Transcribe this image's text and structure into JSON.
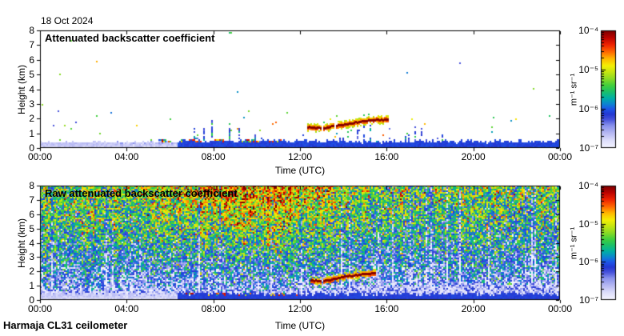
{
  "header": {
    "date": "18 Oct 2024"
  },
  "footer": {
    "instrument": "Harmaja CL31 ceilometer"
  },
  "colormap": {
    "log10_min": -7,
    "log10_max": -4,
    "stops": [
      [
        0.0,
        "#f4f4ff"
      ],
      [
        0.06,
        "#dddefb"
      ],
      [
        0.13,
        "#b2b4f2"
      ],
      [
        0.19,
        "#8790ec"
      ],
      [
        0.24,
        "#4853dc"
      ],
      [
        0.285,
        "#2337d2"
      ],
      [
        0.33,
        "#1e55e8"
      ],
      [
        0.375,
        "#0c85d0"
      ],
      [
        0.425,
        "#00b0a4"
      ],
      [
        0.48,
        "#1cc167"
      ],
      [
        0.53,
        "#3ecf3e"
      ],
      [
        0.59,
        "#8cdb24"
      ],
      [
        0.65,
        "#c8e710"
      ],
      [
        0.7,
        "#f4ef05"
      ],
      [
        0.76,
        "#ffb900"
      ],
      [
        0.82,
        "#ff6600"
      ],
      [
        0.88,
        "#ef2200"
      ],
      [
        0.94,
        "#bd0300"
      ],
      [
        1.0,
        "#7c0000"
      ]
    ]
  },
  "chart_data": [
    {
      "id": "processed",
      "type": "heatmap",
      "title": "Attenuated backscatter coefficient",
      "xlabel": "Time (UTC)",
      "ylabel": "Height (km)",
      "x_tick_labels": [
        "00:00",
        "04:00",
        "08:00",
        "12:00",
        "16:00",
        "20:00",
        "00:00"
      ],
      "x_tick_hours": [
        0,
        4,
        8,
        12,
        16,
        20,
        24
      ],
      "y_tick_labels": [
        "0",
        "1",
        "2",
        "3",
        "4",
        "5",
        "6",
        "7",
        "8"
      ],
      "xlim_hours": [
        0,
        24
      ],
      "ylim_km": [
        0,
        8
      ],
      "grid": false,
      "legend": "colorbar-right",
      "colorbar": {
        "unit": "m⁻¹ sr⁻¹",
        "tick_labels": [
          "10⁻⁴",
          "10⁻⁵",
          "10⁻⁶",
          "10⁻⁷"
        ],
        "log10_ticks": [
          -4,
          -5,
          -6,
          -7
        ]
      },
      "features": {
        "style": "clear",
        "boundary_band": {
          "light_until_hour": 6.35,
          "light_top_km": 0.36,
          "light_log10": -6.78,
          "dark_top_km": 0.32,
          "dark_log10": -6.15
        },
        "surface_aerosol": {
          "start_hour": 5.5,
          "end_hour": 12.05,
          "base_km": 0.14,
          "top_km": 0.46
        },
        "virga": {
          "start_hour": 6.5,
          "end_hour": 18.7,
          "col_prob": 0.22,
          "base_km": 0.45,
          "max_top_km": 2.2
        },
        "speckle": {
          "low_prob": 0.0045,
          "high_prob": 0.0009,
          "split_km": 2.5
        },
        "cloud_trace": {
          "segments": [
            [
              [
                12.3,
                1.44
              ],
              [
                12.62,
                1.41
              ],
              [
                12.92,
                1.35
              ]
            ],
            [
              [
                13.05,
                1.33
              ],
              [
                13.4,
                1.5
              ],
              [
                13.7,
                1.55
              ],
              [
                14.05,
                1.62
              ],
              [
                14.55,
                1.76
              ],
              [
                15.2,
                1.9
              ],
              [
                16.0,
                1.97
              ]
            ]
          ]
        }
      }
    },
    {
      "id": "raw",
      "type": "heatmap",
      "title": "Raw attenuated backscatter coefficient",
      "xlabel": "Time (UTC)",
      "ylabel": "Height (km)",
      "x_tick_labels": [
        "00:00",
        "04:00",
        "08:00",
        "12:00",
        "16:00",
        "20:00",
        "00:00"
      ],
      "x_tick_hours": [
        0,
        4,
        8,
        12,
        16,
        20,
        24
      ],
      "y_tick_labels": [
        "0",
        "1",
        "2",
        "3",
        "4",
        "5",
        "6",
        "7",
        "8"
      ],
      "xlim_hours": [
        0,
        24
      ],
      "ylim_km": [
        0,
        8
      ],
      "grid": false,
      "legend": "colorbar-right",
      "colorbar": {
        "unit": "m⁻¹ sr⁻¹",
        "tick_labels": [
          "10⁻⁴",
          "10⁻⁵",
          "10⁻⁶",
          "10⁻⁷"
        ],
        "log10_ticks": [
          -4,
          -5,
          -6,
          -7
        ]
      },
      "features": {
        "style": "raw",
        "noise": {
          "base": -7.05,
          "gain": 1.7,
          "hexp": 0.55,
          "day_gain": 0.75,
          "day_exp": 1.3,
          "day_peak_hour": 9.5,
          "day_sigma_hours": 4.5,
          "sigma": 0.5,
          "stripe_sigma": 0.14,
          "dark_stripe_prob": 0.05
        },
        "boundary_band": {
          "light_until_hour": 6.35,
          "light_top_km": 0.42,
          "light_log10": -6.82,
          "dark_top_km": 0.3,
          "dark_log10": -6.18
        },
        "white_band": {
          "base_km": 0.28,
          "top_km": 0.62,
          "rise_after_hour": 12,
          "rise_km_per_hour": 0.09,
          "max_top_km": 1.05
        },
        "surface_aerosol": {
          "start_hour": 5.5,
          "end_hour": 12.05,
          "base_km": 0.12,
          "top_km": 0.4
        },
        "cloud_trace": {
          "segments": [
            [
              [
                12.45,
                1.4
              ],
              [
                12.92,
                1.35
              ]
            ],
            [
              [
                13.05,
                1.33
              ],
              [
                13.7,
                1.55
              ],
              [
                14.55,
                1.76
              ],
              [
                15.45,
                1.92
              ]
            ]
          ]
        }
      }
    }
  ]
}
